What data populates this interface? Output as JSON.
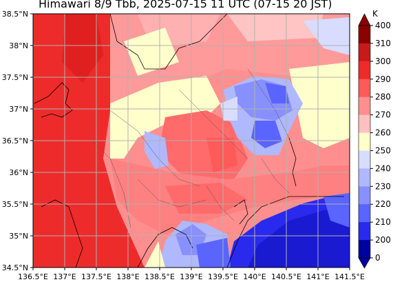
{
  "title": "Himawari 8/9 Tbb, 2025-07-15 11 UTC (07-15 20 JST)",
  "map": {
    "lon_range": [
      136.5,
      141.5
    ],
    "lat_range": [
      34.5,
      38.5
    ],
    "x_ticks": [
      "136.5°E",
      "137°E",
      "137.5°E",
      "138°E",
      "138.5°E",
      "139°E",
      "139.5°E",
      "140°E",
      "140.5°E",
      "141°E",
      "141.5°E"
    ],
    "y_ticks": [
      "38.5°N",
      "38°N",
      "37.5°N",
      "37°N",
      "36.5°N",
      "36°N",
      "35.5°N",
      "35°N",
      "34.5°N"
    ],
    "grid": true
  },
  "colorbar": {
    "unit": "K",
    "labels": [
      "400",
      "310",
      "300",
      "290",
      "280",
      "270",
      "260",
      "250",
      "240",
      "230",
      "220",
      "210",
      "200",
      "0"
    ],
    "colors": [
      "#8b0000",
      "#c81a1a",
      "#ee2b2b",
      "#ff5a5a",
      "#ff8f8f",
      "#ffc0c0",
      "#ffffcc",
      "#d8dcff",
      "#b0b8ff",
      "#8890ff",
      "#5a64ff",
      "#2a2aee",
      "#0000a0"
    ]
  }
}
